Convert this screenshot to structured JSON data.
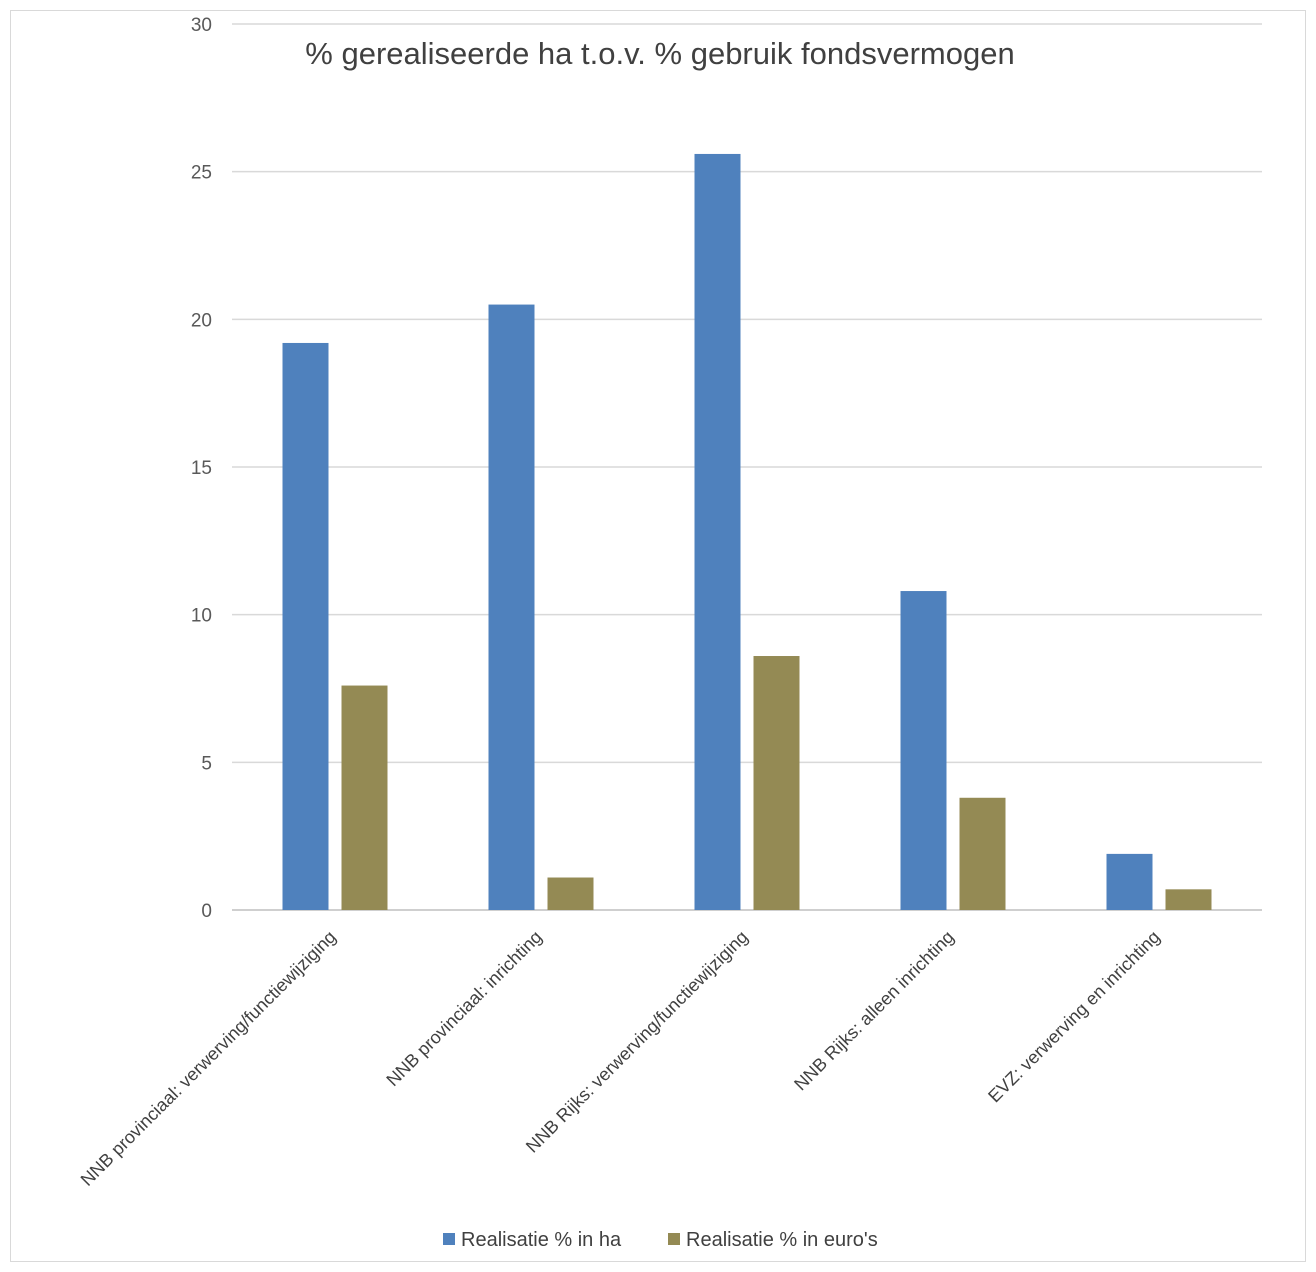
{
  "chart_data": {
    "type": "bar",
    "title": "% gerealiseerde ha t.o.v. % gebruik fondsvermogen",
    "xlabel": "",
    "ylabel": "",
    "ylim": [
      0,
      30
    ],
    "yticks": [
      0,
      5,
      10,
      15,
      20,
      25,
      30
    ],
    "grid": true,
    "legend": "bottom",
    "categories": [
      "NNB provinciaal: verwerving/functiewijziging",
      "NNB provinciaal: inrichting",
      "NNB Rijks: verwerving/functiewijziging",
      "NNB Rijks: alleen inrichting",
      "EVZ: verwerving en inrichting"
    ],
    "series": [
      {
        "name": "Realisatie % in ha",
        "color": "#4f81bd",
        "values": [
          19.2,
          20.5,
          25.6,
          10.8,
          1.9
        ]
      },
      {
        "name": "Realisatie % in euro's",
        "color": "#948a54",
        "values": [
          7.6,
          1.1,
          8.6,
          3.8,
          0.7
        ]
      }
    ]
  }
}
